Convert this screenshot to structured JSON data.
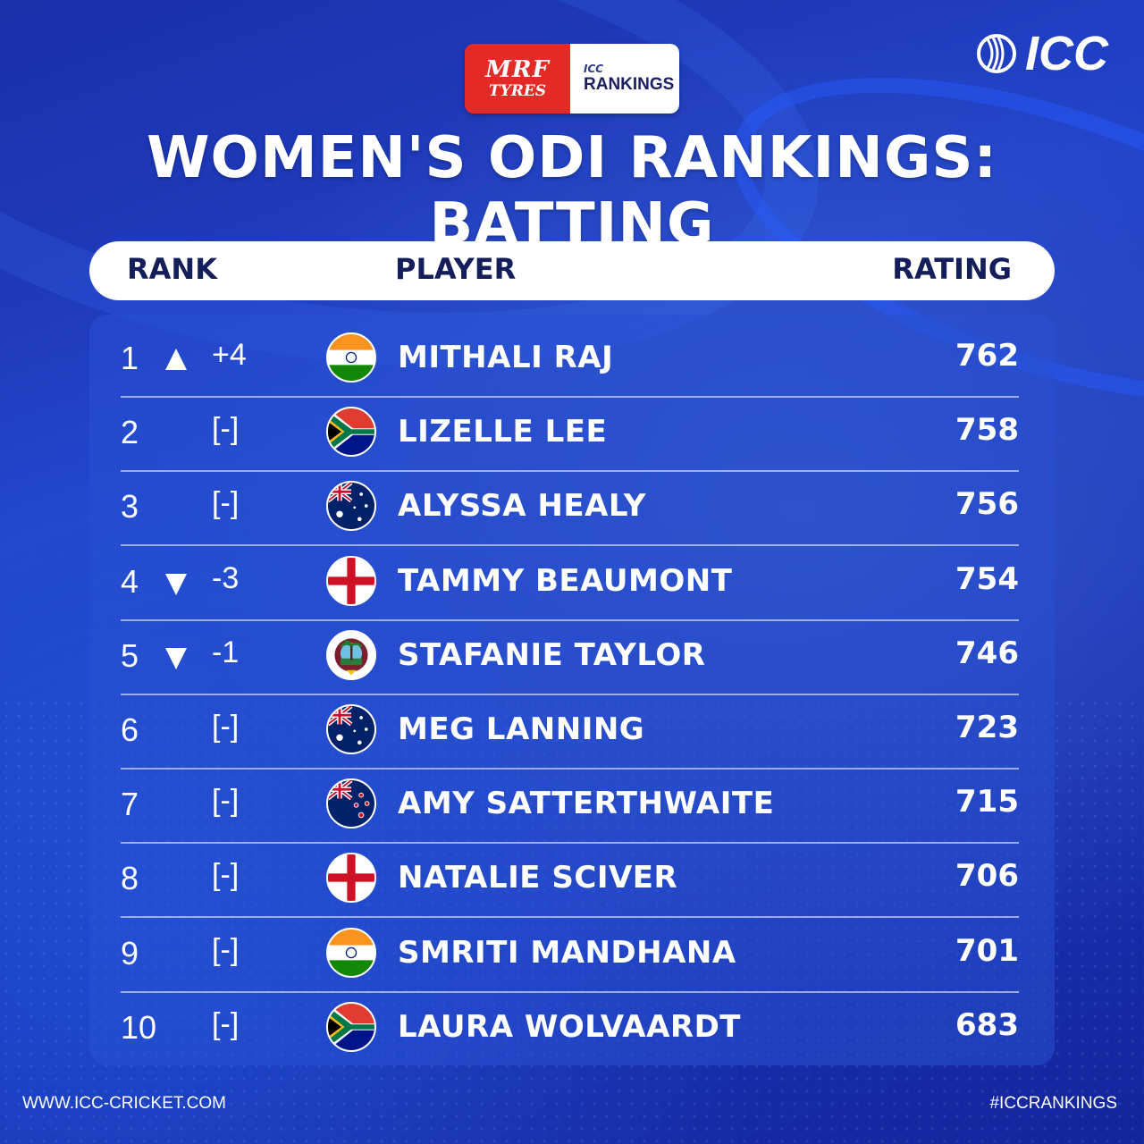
{
  "header": {
    "sponsor_line1": "MRF",
    "sponsor_line2": "TYRES",
    "badge_small": "ICC",
    "badge_main": "RANKINGS",
    "logo_text": "ICC",
    "title": "WOMEN'S ODI RANKINGS: BATTING"
  },
  "table": {
    "col_rank": "RANK",
    "col_player": "PLAYER",
    "col_rating": "RATING",
    "rows": [
      {
        "rank": "1",
        "trend": "up",
        "change": "+4",
        "flag": "india-flag",
        "player": "MITHALI RAJ",
        "rating": "762"
      },
      {
        "rank": "2",
        "trend": "none",
        "change": "[-]",
        "flag": "south-africa-flag",
        "player": "LIZELLE LEE",
        "rating": "758"
      },
      {
        "rank": "3",
        "trend": "none",
        "change": "[-]",
        "flag": "australia-flag",
        "player": "ALYSSA HEALY",
        "rating": "756"
      },
      {
        "rank": "4",
        "trend": "down",
        "change": "-3",
        "flag": "england-flag",
        "player": "TAMMY BEAUMONT",
        "rating": "754"
      },
      {
        "rank": "5",
        "trend": "down",
        "change": "-1",
        "flag": "west-indies-flag",
        "player": "STAFANIE TAYLOR",
        "rating": "746"
      },
      {
        "rank": "6",
        "trend": "none",
        "change": "[-]",
        "flag": "australia-flag",
        "player": "MEG LANNING",
        "rating": "723"
      },
      {
        "rank": "7",
        "trend": "none",
        "change": "[-]",
        "flag": "new-zealand-flag",
        "player": "AMY SATTERTHWAITE",
        "rating": "715"
      },
      {
        "rank": "8",
        "trend": "none",
        "change": "[-]",
        "flag": "england-flag",
        "player": "NATALIE SCIVER",
        "rating": "706"
      },
      {
        "rank": "9",
        "trend": "none",
        "change": "[-]",
        "flag": "india-flag",
        "player": "SMRITI MANDHANA",
        "rating": "701"
      },
      {
        "rank": "10",
        "trend": "none",
        "change": "[-]",
        "flag": "south-africa-flag",
        "player": "LAURA WOLVAARDT",
        "rating": "683"
      }
    ]
  },
  "footer": {
    "website": "WWW.ICC-CRICKET.COM",
    "hashtag": "#ICCRANKINGS"
  }
}
